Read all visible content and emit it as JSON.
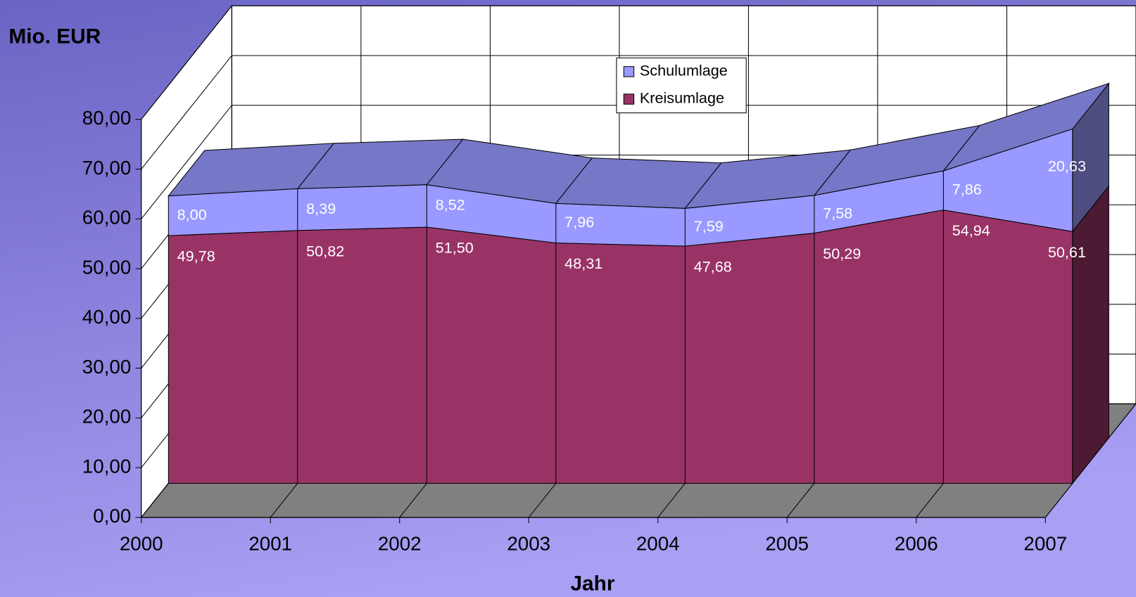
{
  "chart_data": {
    "type": "area3d",
    "stacked": true,
    "y_label": "Mio. EUR",
    "x_label": "Jahr",
    "categories": [
      "2000",
      "2001",
      "2002",
      "2003",
      "2004",
      "2005",
      "2006",
      "2007"
    ],
    "series": [
      {
        "name": "Kreisumlage",
        "color": "#993366",
        "values": [
          49.78,
          50.82,
          51.5,
          48.31,
          47.68,
          50.29,
          54.94,
          50.61
        ],
        "value_labels": [
          "49,78",
          "50,82",
          "51,50",
          "48,31",
          "47,68",
          "50,29",
          "54,94",
          "50,61"
        ]
      },
      {
        "name": "Schulumlage",
        "color": "#9999ff",
        "values": [
          8.0,
          8.39,
          8.52,
          7.96,
          7.59,
          7.58,
          7.86,
          20.63
        ],
        "value_labels": [
          "8,00",
          "8,39",
          "8,52",
          "7,96",
          "7,59",
          "7,58",
          "7,86",
          "20,63"
        ]
      }
    ],
    "ylim": [
      0,
      80
    ],
    "yticks": [
      {
        "value": 0,
        "label": "0,00"
      },
      {
        "value": 10,
        "label": "10,00"
      },
      {
        "value": 20,
        "label": "20,00"
      },
      {
        "value": 30,
        "label": "30,00"
      },
      {
        "value": 40,
        "label": "40,00"
      },
      {
        "value": 50,
        "label": "50,00"
      },
      {
        "value": 60,
        "label": "60,00"
      },
      {
        "value": 70,
        "label": "70,00"
      },
      {
        "value": 80,
        "label": "80,00"
      }
    ],
    "grid": true,
    "legend": "top"
  }
}
